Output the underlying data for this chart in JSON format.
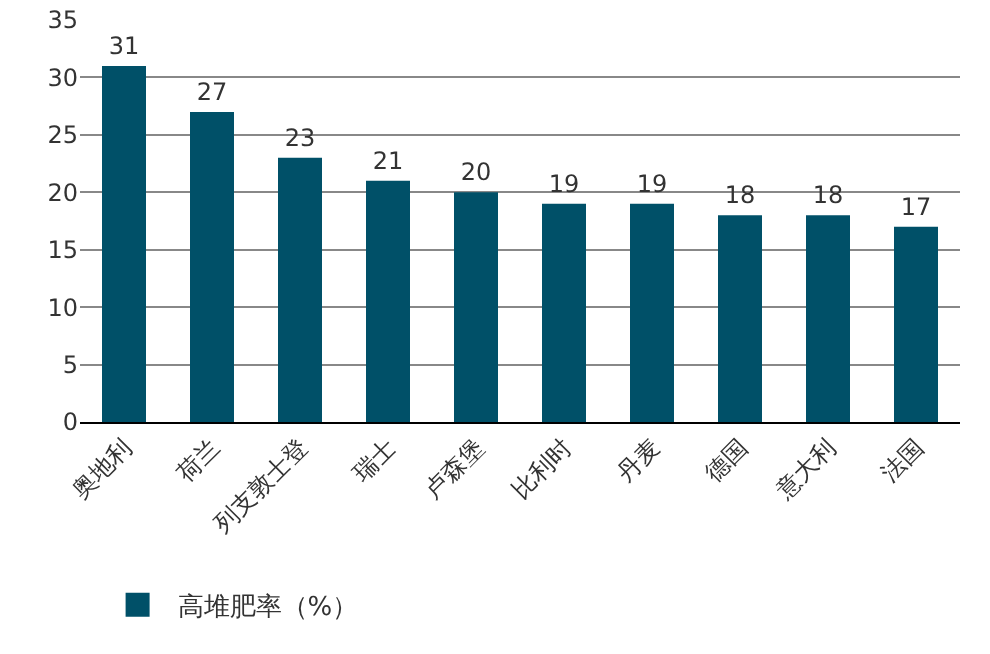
{
  "chart_data": {
    "type": "bar",
    "categories": [
      "奥地利",
      "荷兰",
      "列支敦士登",
      "瑞士",
      "卢森堡",
      "比利时",
      "丹麦",
      "德国",
      "意大利",
      "法国"
    ],
    "series": [
      {
        "name": "高堆肥率（%）",
        "color": "#005068",
        "values": [
          31,
          27,
          23,
          21,
          20,
          19,
          19,
          18,
          18,
          17
        ]
      }
    ],
    "ylim": [
      0,
      35
    ],
    "yticks": [
      0,
      5,
      10,
      15,
      20,
      25,
      30,
      35
    ],
    "grid": "y",
    "legend": "bottom",
    "data_labels": true
  }
}
